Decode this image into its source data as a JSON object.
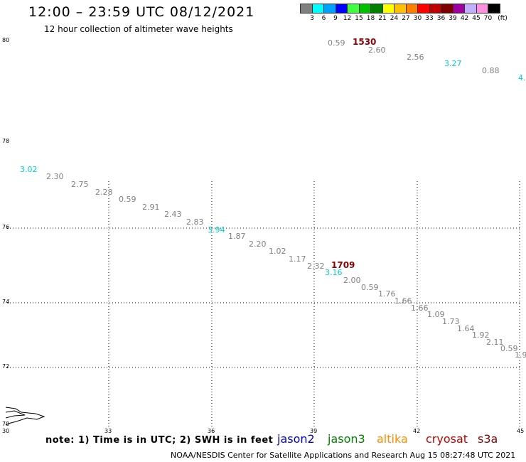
{
  "header": {
    "title": "12:00 – 23:59 UTC 08/12/2021",
    "subtitle": "12 hour collection of altimeter wave heights"
  },
  "color_scale": {
    "labels": [
      "3",
      "6",
      "9",
      "12",
      "15",
      "18",
      "21",
      "24",
      "27",
      "30",
      "33",
      "36",
      "39",
      "42",
      "45",
      "70",
      "(ft)"
    ],
    "colors": [
      "#808080",
      "#00ffff",
      "#00a0ff",
      "#0000ff",
      "#40ff40",
      "#00c000",
      "#008000",
      "#ffff00",
      "#ffc000",
      "#ff8000",
      "#ff0000",
      "#c00000",
      "#800000",
      "#a000a0",
      "#c0b0ff",
      "#ff90e0",
      "#000000"
    ]
  },
  "axes": {
    "lat_labels": [
      "80",
      "78",
      "76",
      "74",
      "72",
      "70"
    ],
    "lon_labels": [
      "30",
      "33",
      "36",
      "39",
      "42",
      "45"
    ]
  },
  "passes": {
    "pass1_time": "1530",
    "pass1_values": [
      "0.59",
      "2.60",
      "2.56",
      "3.27",
      "0.88",
      "4."
    ],
    "pass2_time": "1709",
    "pass2_values": [
      "3.02",
      "2.30",
      "2.75",
      "2.28",
      "0.59",
      "2.91",
      "2.43",
      "2.83",
      "3.94",
      "1.87",
      "2.20",
      "1.02",
      "1.17",
      "2.32",
      "3.16",
      "2.00",
      "0.59",
      "1.76",
      "1.66",
      "1.66",
      "1.09",
      "1.73",
      "1.64",
      "1.92",
      "2.11",
      "0.59",
      "1.9"
    ]
  },
  "footer": {
    "note": "note: 1) Time is in UTC; 2) SWH is in feet",
    "legend": [
      {
        "name": "jason2",
        "color": "#0000c0"
      },
      {
        "name": "jason3",
        "color": "#008000"
      },
      {
        "name": "altika",
        "color": "#ff8c00"
      },
      {
        "name": "cryosat",
        "color": "#c00000"
      },
      {
        "name": "s3a",
        "color": "#8b0000"
      }
    ],
    "credit": "NOAA/NESDIS Center for Satellite Applications and Research      Aug 15 08:27:48 UTC 2021"
  }
}
